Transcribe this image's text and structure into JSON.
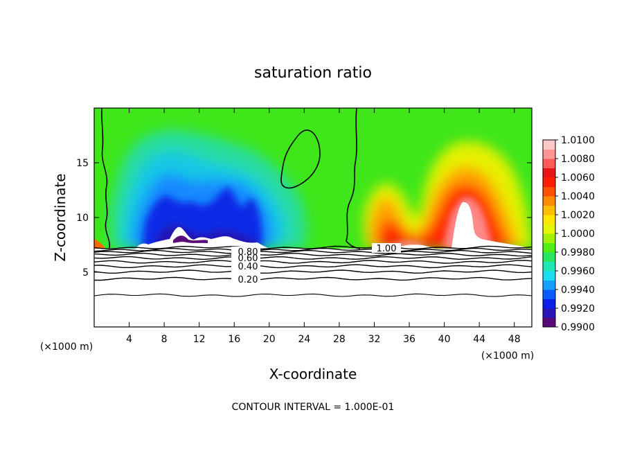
{
  "chart_data": {
    "type": "heatmap",
    "title": "saturation ratio",
    "xlabel": "X-coordinate",
    "ylabel": "Z-coordinate",
    "x_unit_left": "(×1000 m)",
    "x_unit_right": "(×1000 m)",
    "footer": "CONTOUR INTERVAL = 1.000E-01",
    "xlim": [
      0,
      50
    ],
    "ylim": [
      0,
      20
    ],
    "x_ticks": [
      4,
      8,
      12,
      16,
      20,
      24,
      28,
      32,
      36,
      40,
      44,
      48
    ],
    "x_tick_labels": [
      "4",
      "8",
      "12",
      "16",
      "20",
      "24",
      "28",
      "32",
      "36",
      "40",
      "44",
      "48"
    ],
    "y_ticks": [
      5,
      10,
      15
    ],
    "y_tick_labels": [
      "5",
      "10",
      "15"
    ],
    "colorbar": {
      "min": 0.99,
      "max": 1.01,
      "labels": [
        "0.9900",
        "0.9920",
        "0.9940",
        "0.9960",
        "0.9980",
        "1.0000",
        "1.0020",
        "1.0040",
        "1.0060",
        "1.0080",
        "1.0100"
      ],
      "colors": [
        "#5a0a78",
        "#2a14b4",
        "#0a1ee6",
        "#0a5aff",
        "#14a0ff",
        "#1edcf0",
        "#1ee6b4",
        "#28e664",
        "#50ee14",
        "#a0f000",
        "#e6f500",
        "#ffe600",
        "#ffbe00",
        "#ff8c00",
        "#ff5000",
        "#ff1e00",
        "#e61414",
        "#ff5a5a",
        "#ff9696",
        "#ffc8c8"
      ]
    },
    "contour_labels": [
      {
        "text": "0.80",
        "x": 17.7,
        "y": 7.0
      },
      {
        "text": "0.60",
        "x": 17.7,
        "y": 6.4
      },
      {
        "text": "0.40",
        "x": 17.7,
        "y": 5.6
      },
      {
        "text": "0.20",
        "x": 17.7,
        "y": 4.5
      },
      {
        "text": "1.00",
        "x": 33.8,
        "y": 7.3
      }
    ],
    "lower_contours_z": [
      7.25,
      7.05,
      6.85,
      6.6,
      6.3,
      5.95,
      5.55,
      5.05,
      4.4,
      2.9
    ]
  }
}
